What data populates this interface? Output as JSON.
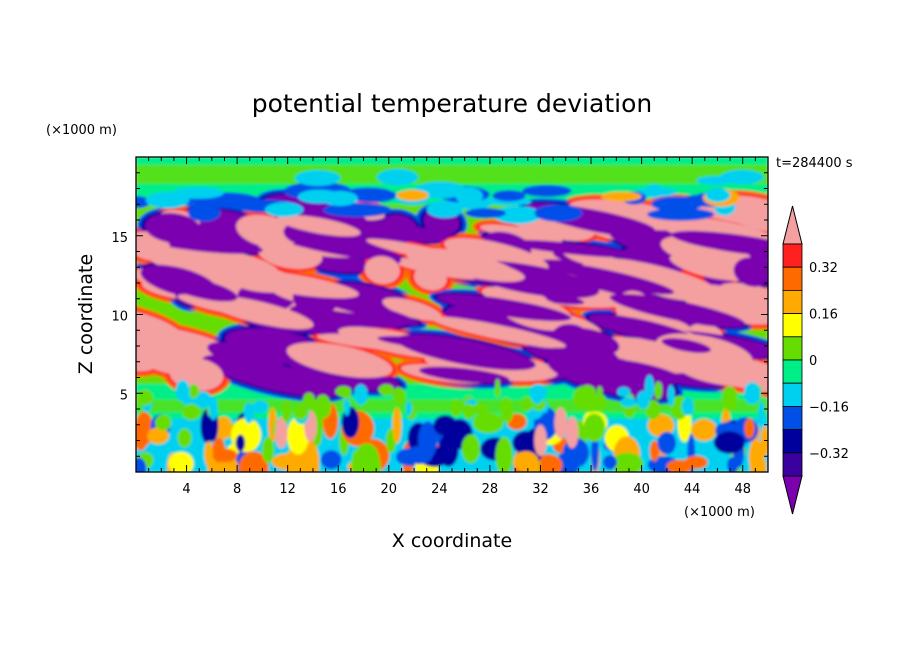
{
  "chart_data": {
    "type": "heatmap",
    "title": "potential temperature deviation",
    "xlabel": "X coordinate",
    "ylabel": "Z coordinate",
    "x_unit": "(×1000 m)",
    "y_unit": "(×1000 m)",
    "time_label": "t=284400 s",
    "xlim": [
      0,
      50
    ],
    "ylim": [
      0,
      20
    ],
    "x_ticks": [
      4,
      8,
      12,
      16,
      20,
      24,
      28,
      32,
      36,
      40,
      44,
      48
    ],
    "y_ticks": [
      5,
      10,
      15
    ],
    "grid": false,
    "colorbar": {
      "levels": [
        -0.4,
        -0.32,
        -0.24,
        -0.16,
        -0.08,
        0,
        0.08,
        0.16,
        0.24,
        0.32,
        0.4
      ],
      "tick_labels": [
        "0.32",
        "0.16",
        "0",
        "−0.16",
        "−0.32"
      ],
      "colors": [
        "#7a00b0",
        "#3a00a0",
        "#00009c",
        "#0050e8",
        "#00d0f0",
        "#00ee88",
        "#66dd00",
        "#ffff00",
        "#ffaa00",
        "#ff6a00",
        "#ff2020",
        "#f4a0a0"
      ]
    },
    "layers": [
      {
        "z_range": [
          0,
          3.5
        ],
        "description": "convective boundary layer with mixed small cells"
      },
      {
        "z_range": [
          3.5,
          5.5
        ],
        "description": "near-neutral band"
      },
      {
        "z_range": [
          5.5,
          17
        ],
        "description": "alternating warm and cold sloping bands"
      },
      {
        "z_range": [
          17,
          20
        ],
        "description": "weakly perturbed upper layer"
      }
    ]
  }
}
